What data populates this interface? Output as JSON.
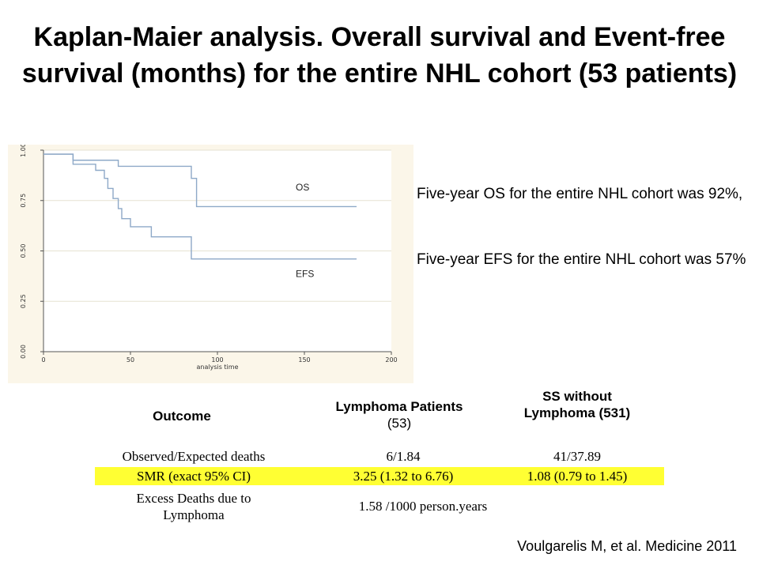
{
  "title": "Kaplan-Maier analysis.  Overall survival and Event-free survival (months) for the entire NHL cohort (53 patients)",
  "chart_data": {
    "type": "line",
    "xlabel": "analysis time",
    "ylabel": "",
    "xlim": [
      0,
      200
    ],
    "ylim": [
      0,
      1
    ],
    "x_ticks": [
      "0",
      "50",
      "100",
      "150",
      "200"
    ],
    "y_ticks": [
      "0.00",
      "0.25",
      "0.50",
      "0.75",
      "1.00"
    ],
    "grid": true,
    "series": [
      {
        "name": "OS",
        "x": [
          0,
          17,
          17,
          43,
          43,
          85,
          85,
          88,
          88,
          180
        ],
        "y": [
          0.98,
          0.98,
          0.95,
          0.95,
          0.92,
          0.92,
          0.86,
          0.86,
          0.72,
          0.72
        ]
      },
      {
        "name": "EFS",
        "x": [
          0,
          17,
          17,
          30,
          30,
          35,
          35,
          37,
          37,
          40,
          40,
          43,
          43,
          45,
          45,
          50,
          50,
          62,
          62,
          85,
          85,
          180
        ],
        "y": [
          0.98,
          0.98,
          0.93,
          0.93,
          0.9,
          0.9,
          0.86,
          0.86,
          0.81,
          0.81,
          0.76,
          0.76,
          0.71,
          0.71,
          0.66,
          0.66,
          0.62,
          0.62,
          0.57,
          0.57,
          0.46,
          0.46
        ]
      }
    ],
    "colors": {
      "line": "#8ea9c8",
      "grid": "#e6e2d2",
      "panel": "#fbf6e9"
    }
  },
  "notes": {
    "os": "Five-year OS for the entire NHL cohort was 92%,",
    "efs": "Five-year EFS for the entire NHL cohort was 57%"
  },
  "table": {
    "headers": {
      "outcome": "Outcome",
      "lymphoma_main": "Lymphoma Patients",
      "lymphoma_sub": "(53)",
      "ss_line1": "SS without",
      "ss_line2": "Lymphoma (531)"
    },
    "rows": [
      {
        "label": "Observed/Expected deaths",
        "lymphoma": "6/1.84",
        "ss": "41/37.89"
      },
      {
        "label": "SMR (exact 95% CI)",
        "lymphoma": "3.25 (1.32 to 6.76)",
        "ss": "1.08 (0.79 to 1.45)"
      }
    ],
    "excess": {
      "label_line1": "Excess Deaths due to",
      "label_line2": "Lymphoma",
      "value": "1.58 /1000 person.years"
    },
    "highlight_color": "#ffff33"
  },
  "citation": "Voulgarelis M,  et al.  Medicine 2011"
}
